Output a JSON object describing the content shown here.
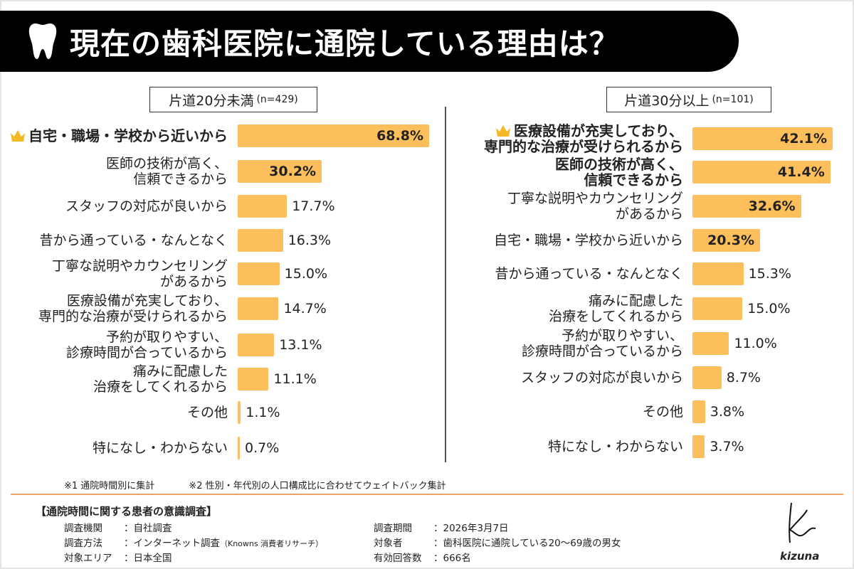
{
  "title": "現在の歯科医院に通院している理由は？",
  "icons": {
    "title": "tooth-icon",
    "top_rank": "crown-icon"
  },
  "colors": {
    "bar": "#fdbe5c",
    "header_bg": "#000000",
    "rule": "#f4a060"
  },
  "chart_data": [
    {
      "type": "bar",
      "orientation": "horizontal",
      "title": "片道20分未満",
      "n_label": "(n=429)",
      "unit": "%",
      "categories": [
        "自宅・職場・学校から近いから",
        "医師の技術が高く、\n信頼できるから",
        "スタッフの対応が良いから",
        "昔から通っている・なんとなく",
        "丁寧な説明やカウンセリング\nがあるから",
        "医療設備が充実しており、\n専門的な治療が受けられるから",
        "予約が取りやすい、\n診療時間が合っているから",
        "痛みに配慮した\n治療をしてくれるから",
        "その他",
        "特になし・わからない"
      ],
      "values": [
        68.8,
        30.2,
        17.7,
        16.3,
        15.0,
        14.7,
        13.1,
        11.1,
        1.1,
        0.7
      ],
      "value_labels": [
        "68.8%",
        "30.2%",
        "17.7%",
        "16.3%",
        "15.0%",
        "14.7%",
        "13.1%",
        "11.1%",
        "1.1%",
        "0.7%"
      ]
    },
    {
      "type": "bar",
      "orientation": "horizontal",
      "title": "片道30分以上",
      "n_label": "(n=101)",
      "unit": "%",
      "categories": [
        "医療設備が充実しており、\n専門的な治療が受けられるから",
        "医師の技術が高く、\n信頼できるから",
        "丁寧な説明やカウンセリング\nがあるから",
        "自宅・職場・学校から近いから",
        "昔から通っている・なんとなく",
        "痛みに配慮した\n治療をしてくれるから",
        "予約が取りやすい、\n診療時間が合っているから",
        "スタッフの対応が良いから",
        "その他",
        "特になし・わからない"
      ],
      "values": [
        42.1,
        41.4,
        32.6,
        20.3,
        15.3,
        15.0,
        11.0,
        8.7,
        3.8,
        3.7
      ],
      "value_labels": [
        "42.1%",
        "41.4%",
        "32.6%",
        "20.3%",
        "15.3%",
        "15.0%",
        "11.0%",
        "8.7%",
        "3.8%",
        "3.7%"
      ]
    }
  ],
  "notes": [
    "※1 通院時間別に集計",
    "※2 性別・年代別の人口構成比に合わせてウェイトバック集計"
  ],
  "survey": {
    "title": "【通院時間に関する患者の意識調査】",
    "left": [
      {
        "k": "調査機関",
        "v": "：自社調査"
      },
      {
        "k": "調査方法",
        "v": "：インターネット調査",
        "sub": "（Knowns 消費者リサーチ）"
      },
      {
        "k": "対象エリア",
        "v": "：日本全国"
      }
    ],
    "right": [
      {
        "k": "調査期間",
        "v": "：2026年3月7日"
      },
      {
        "k": "対象者",
        "v": "：歯科医院に通院している20～69歳の男女"
      },
      {
        "k": "有効回答数",
        "v": "：666名"
      }
    ]
  },
  "logo": "kizuna"
}
